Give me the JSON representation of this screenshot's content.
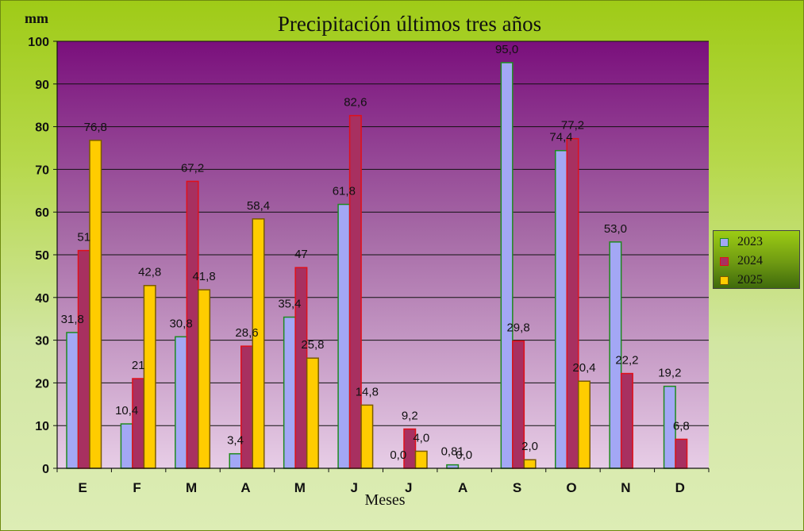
{
  "chart_data": {
    "type": "bar",
    "title": "Precipitación últimos tres años",
    "unit_label": "mm",
    "xlabel": "Meses",
    "ylim": [
      0,
      100
    ],
    "yticks": [
      0,
      10,
      20,
      30,
      40,
      50,
      60,
      70,
      80,
      90,
      100
    ],
    "categories": [
      "E",
      "F",
      "M",
      "A",
      "M",
      "J",
      "J",
      "A",
      "S",
      "O",
      "N",
      "D"
    ],
    "grid": true,
    "legend_position": "right",
    "series": [
      {
        "name": "2023",
        "color": "#a3a7f5",
        "edge": "#1f8a1f",
        "values": [
          31.8,
          10.4,
          30.8,
          3.4,
          35.4,
          61.8,
          0.0,
          0.81,
          95.0,
          74.4,
          53.0,
          19.2
        ],
        "labels": [
          "31,8",
          "10,4",
          "30,8",
          "3,4",
          "35,4",
          "61,8",
          "0,0",
          "0,81",
          "95,0",
          "74,4",
          "53,0",
          "19,2"
        ]
      },
      {
        "name": "2024",
        "color": "#a83060",
        "edge": "#e0101a",
        "values": [
          51,
          21,
          67.2,
          28.6,
          47,
          82.6,
          9.2,
          0.0,
          29.8,
          77.2,
          22.2,
          6.8
        ],
        "labels": [
          "51",
          "21",
          "67,2",
          "28,6",
          "47",
          "82,6",
          "9,2",
          "0,0",
          "29,8",
          "77,2",
          "22,2",
          "6,8"
        ]
      },
      {
        "name": "2025",
        "color": "#ffcc00",
        "edge": "#7a5a00",
        "values": [
          76.8,
          42.8,
          41.8,
          58.4,
          25.8,
          14.8,
          4.0,
          null,
          2.0,
          20.4,
          null,
          null
        ],
        "labels": [
          "76,8",
          "42,8",
          "41,8",
          "58,4",
          "25,8",
          "14,8",
          "4,0",
          "",
          "2,0",
          "20,4",
          "",
          ""
        ]
      }
    ]
  }
}
